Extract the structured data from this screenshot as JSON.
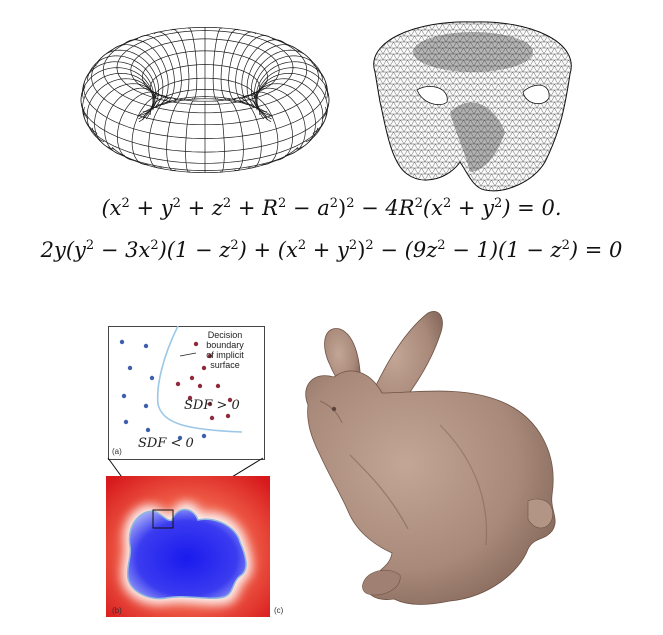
{
  "equations": {
    "torus": {
      "a": "(x",
      "b": " + y",
      "c": " + z",
      "d": " + R",
      "e": " − a",
      "f": ")",
      "g": " − 4R",
      "h": "(x",
      "i": " + y",
      "j": ") = 0.",
      "sq": "2"
    },
    "surface": {
      "a": "2y(y",
      "b": " − 3x",
      "c": ")(1 − z",
      "d": ") + (x",
      "e": " + y",
      "f": ")",
      "g": " − (9z",
      "h": " − 1)(1 − z",
      "i": ") = 0",
      "sq": "2"
    }
  },
  "panel_a": {
    "label": "(a)",
    "annotation": [
      "Decision",
      "boundary",
      "of implicit",
      "surface"
    ],
    "sdf_positive": "SDF > 0",
    "sdf_negative": "SDF < 0",
    "colors": {
      "inside_dot": "#3d5fae",
      "outside_dot": "#8e2a3c",
      "boundary": "#9cc7e6"
    }
  },
  "panel_b": {
    "label": "(b)",
    "colors": {
      "outside": "#e3251f",
      "inside": "#2a2ae6"
    }
  },
  "panel_c": {
    "label": "(c)",
    "colors": {
      "bunny": "#a8897a"
    }
  }
}
